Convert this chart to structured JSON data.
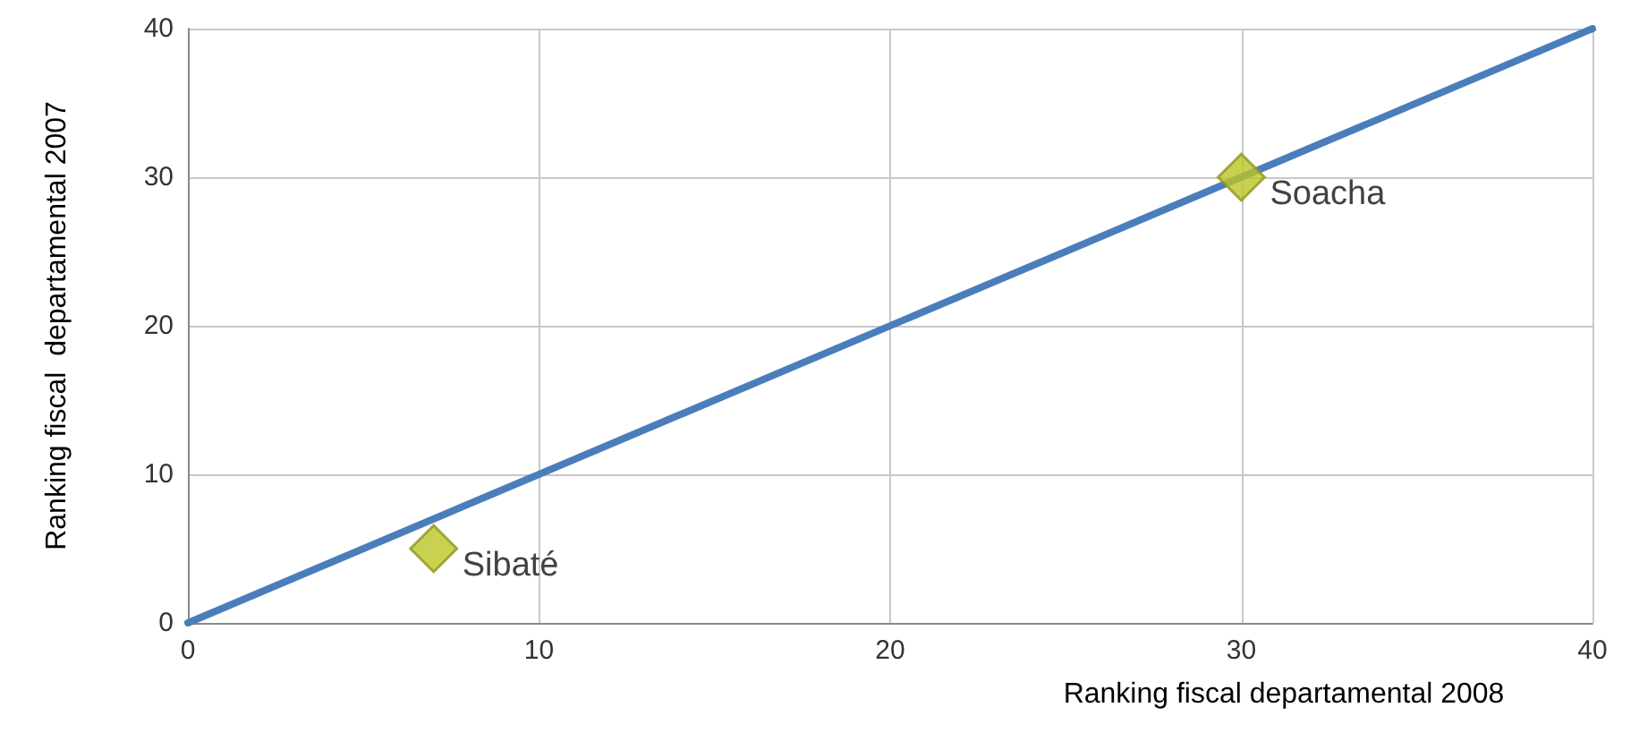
{
  "chart_data": {
    "type": "scatter",
    "xlabel": "Ranking fiscal departamental 2008",
    "ylabel": "Ranking fiscal  departamental 2007",
    "xlim": [
      0,
      40
    ],
    "xticks": [
      0,
      10,
      20,
      30,
      40
    ],
    "ylim": [
      0,
      40
    ],
    "yticks": [
      0,
      10,
      20,
      30,
      40
    ],
    "grid": true,
    "series": [
      {
        "type": "line",
        "x": [
          0,
          40
        ],
        "values": [
          0,
          40
        ],
        "color": "#4a7ebb",
        "marker": "none"
      },
      {
        "x": [
          7,
          30
        ],
        "values": [
          5,
          30
        ],
        "color": "#bcc526",
        "marker": "diamond"
      }
    ],
    "annotations": [
      {
        "text": "Sibaté",
        "x": 7,
        "y": 5
      },
      {
        "text": "Soacha",
        "x": 30,
        "y": 30
      }
    ]
  }
}
